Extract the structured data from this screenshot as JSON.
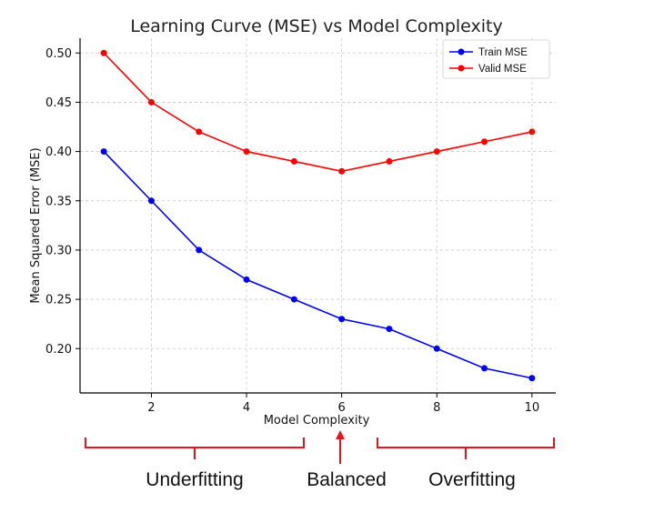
{
  "chart_data": {
    "type": "line",
    "title": "Learning Curve (MSE) vs Model Complexity",
    "xlabel": "Model Complexity",
    "ylabel": "Mean Squared Error (MSE)",
    "x": [
      1,
      2,
      3,
      4,
      5,
      6,
      7,
      8,
      9,
      10
    ],
    "xlim": [
      0.5,
      10.5
    ],
    "ylim": [
      0.155,
      0.515
    ],
    "xticks": [
      2,
      4,
      6,
      8,
      10
    ],
    "yticks": [
      0.2,
      0.25,
      0.3,
      0.35,
      0.4,
      0.45,
      0.5
    ],
    "xtick_labels": [
      "2",
      "4",
      "6",
      "8",
      "10"
    ],
    "ytick_labels": [
      "0.20",
      "0.25",
      "0.30",
      "0.35",
      "0.40",
      "0.45",
      "0.50"
    ],
    "grid": true,
    "legend_position": "top-right",
    "series": [
      {
        "name": "Train MSE",
        "color": "#0000ff",
        "values": [
          0.4,
          0.35,
          0.3,
          0.27,
          0.25,
          0.23,
          0.22,
          0.2,
          0.18,
          0.17
        ]
      },
      {
        "name": "Valid MSE",
        "color": "#ff0000",
        "values": [
          0.5,
          0.45,
          0.42,
          0.4,
          0.39,
          0.38,
          0.39,
          0.4,
          0.41,
          0.42
        ]
      }
    ],
    "annotations": {
      "color": "#e8141a",
      "underfitting": "Underfitting",
      "balanced": "Balanced",
      "overfitting": "Overfitting"
    }
  }
}
